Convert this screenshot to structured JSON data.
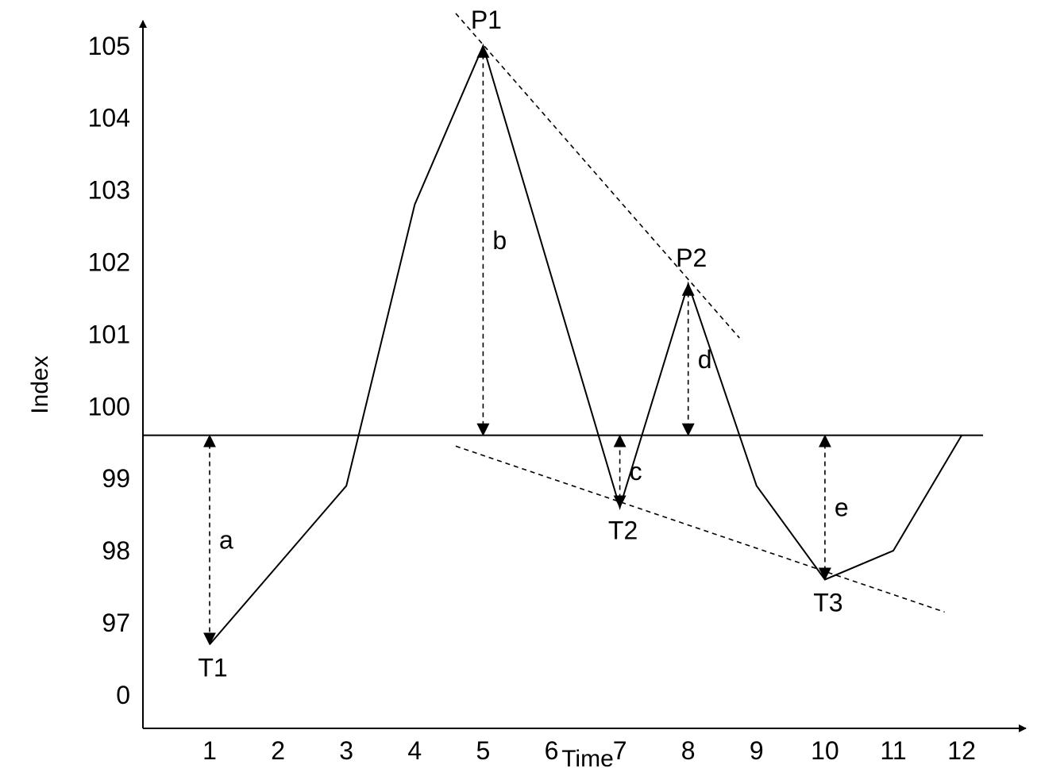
{
  "chart_data": {
    "type": "line",
    "xlabel": "Time",
    "ylabel": "Index",
    "x_ticks": [
      "1",
      "2",
      "3",
      "4",
      "5",
      "6",
      "7",
      "8",
      "9",
      "10",
      "11",
      "12"
    ],
    "y_ticks": [
      "0",
      "97",
      "98",
      "99",
      "100",
      "101",
      "102",
      "103",
      "104",
      "105"
    ],
    "series": [
      {
        "x": [
          1,
          3,
          4,
          5,
          7,
          8,
          9,
          10,
          11,
          12
        ],
        "y": [
          96.7,
          98.9,
          102.8,
          105.0,
          98.6,
          101.7,
          98.9,
          97.6,
          98.0,
          99.6
        ]
      }
    ],
    "baseline": 99.6,
    "trend_lines": [
      {
        "from": [
          4.6,
          105.45
        ],
        "to": [
          8.75,
          100.95
        ]
      },
      {
        "from": [
          4.6,
          99.45
        ],
        "to": [
          11.75,
          97.15
        ]
      }
    ],
    "point_labels": [
      {
        "text": "T1",
        "x": 1,
        "y": 96.7,
        "position": "below"
      },
      {
        "text": "P1",
        "x": 5,
        "y": 105.0,
        "position": "above"
      },
      {
        "text": "T2",
        "x": 7,
        "y": 98.6,
        "position": "below"
      },
      {
        "text": "P2",
        "x": 8,
        "y": 101.7,
        "position": "above"
      },
      {
        "text": "T3",
        "x": 10,
        "y": 97.6,
        "position": "below"
      }
    ],
    "measures": [
      {
        "text": "a",
        "x": 1,
        "from": 99.6,
        "to": 96.7
      },
      {
        "text": "b",
        "x": 5,
        "from": 105.0,
        "to": 99.6
      },
      {
        "text": "c",
        "x": 7,
        "from": 98.6,
        "to": 99.6
      },
      {
        "text": "d",
        "x": 8,
        "from": 101.7,
        "to": 99.6
      },
      {
        "text": "e",
        "x": 10,
        "from": 97.6,
        "to": 99.6
      }
    ],
    "grid": false,
    "legend": "none"
  }
}
